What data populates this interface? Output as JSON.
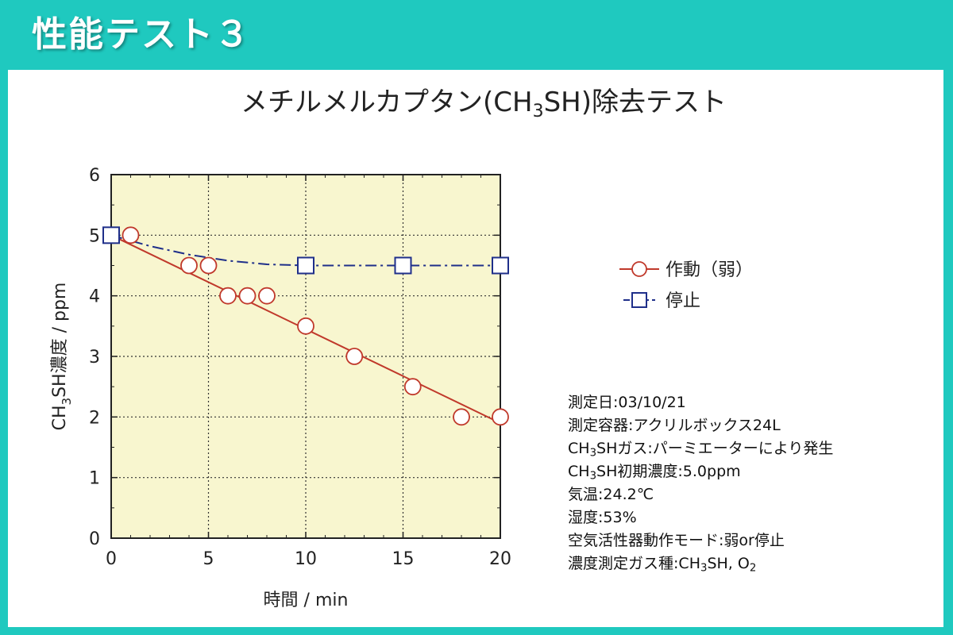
{
  "header": {
    "title": "性能テスト３"
  },
  "colors": {
    "accent": "#1fc9bf",
    "plot_bg": "#f8f6cf",
    "series_on": "#c0392b",
    "series_off": "#1f2f8a"
  },
  "chart_data": {
    "type": "line",
    "title": {
      "prefix": "メチルメルカプタン(CH",
      "sub": "3",
      "suffix": "SH)除去テスト"
    },
    "xlabel": "時間 / min",
    "ylabel": {
      "prefix": "CH",
      "sub": "3",
      "suffix": "SH濃度 / ppm"
    },
    "xlim": [
      0,
      20
    ],
    "ylim": [
      0,
      6
    ],
    "xticks": [
      0,
      5,
      10,
      15,
      20
    ],
    "yticks": [
      0,
      1,
      2,
      3,
      4,
      5,
      6
    ],
    "grid": true,
    "legend_position": "right",
    "series": [
      {
        "name": "作動（弱）",
        "marker": "circle",
        "color": "#c0392b",
        "x": [
          1,
          4,
          5,
          6,
          7,
          8,
          10,
          12.5,
          15.5,
          18,
          20
        ],
        "y": [
          5.0,
          4.5,
          4.5,
          4.0,
          4.0,
          4.0,
          3.5,
          3.0,
          2.5,
          2.0,
          2.0
        ],
        "fit": {
          "x": [
            0,
            20
          ],
          "y": [
            5.0,
            1.9
          ]
        }
      },
      {
        "name": "停止",
        "marker": "square",
        "color": "#1f2f8a",
        "x": [
          0,
          10,
          15,
          20
        ],
        "y": [
          5.0,
          4.5,
          4.5,
          4.5
        ],
        "curve": {
          "x": [
            0,
            2,
            4,
            6,
            8,
            10,
            15,
            20
          ],
          "y": [
            5.0,
            4.82,
            4.68,
            4.58,
            4.52,
            4.5,
            4.5,
            4.5
          ]
        }
      }
    ]
  },
  "info": [
    {
      "label": "測定日",
      "value": "03/10/21"
    },
    {
      "label": "測定容器",
      "value": "アクリルボックス24L"
    },
    {
      "label": {
        "prefix": "CH",
        "sub": "3",
        "suffix": "SHガス"
      },
      "value": "パーミエーターにより発生"
    },
    {
      "label": {
        "prefix": "CH",
        "sub": "3",
        "suffix": "SH初期濃度"
      },
      "value": "5.0ppm"
    },
    {
      "label": "気温",
      "value": "24.2℃"
    },
    {
      "label": "湿度",
      "value": "53%"
    },
    {
      "label": "空気活性器動作モード",
      "value": "弱or停止"
    },
    {
      "label": "濃度測定ガス種",
      "value": {
        "prefix": "CH",
        "sub": "3",
        "suffix": "SH, O",
        "sub2": "2"
      }
    }
  ]
}
